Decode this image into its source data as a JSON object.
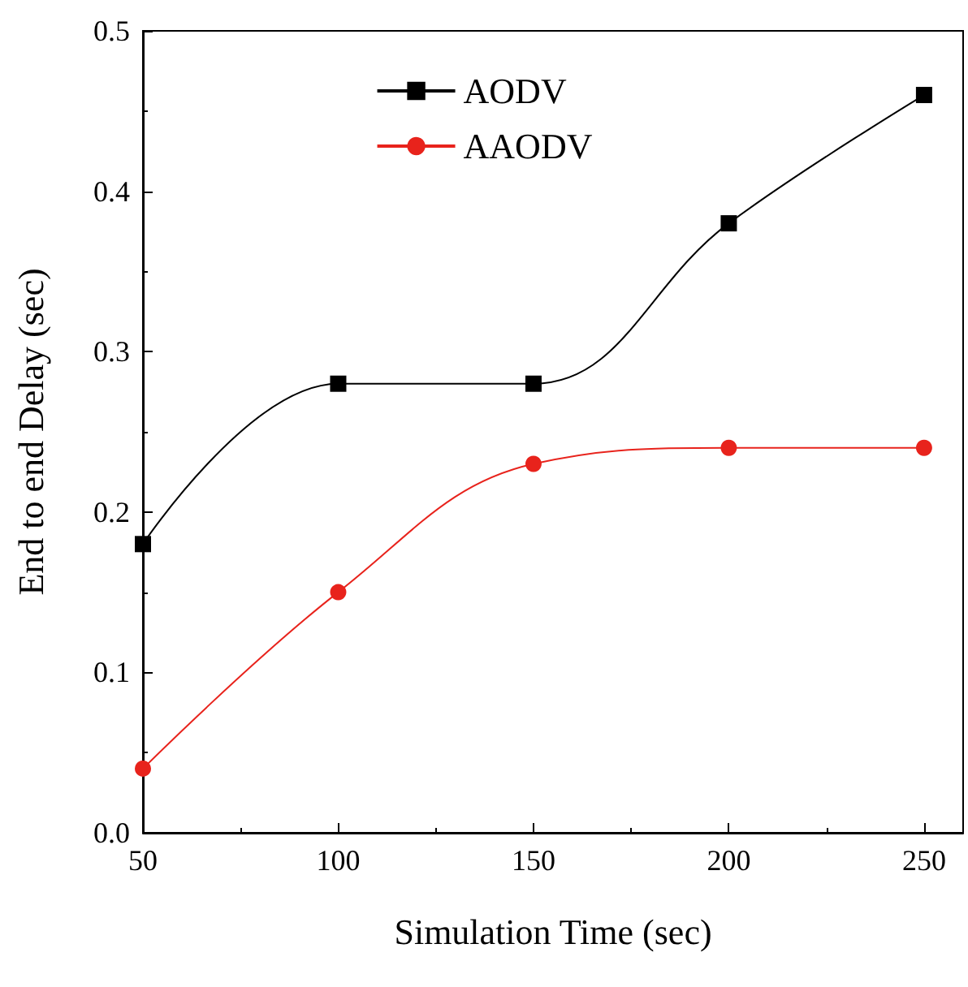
{
  "chart_data": {
    "type": "line",
    "xlabel": "Simulation Time (sec)",
    "ylabel": "End to end Delay (sec)",
    "x": [
      50,
      100,
      150,
      200,
      250
    ],
    "series": [
      {
        "name": "AODV",
        "color": "#000000",
        "marker": "square",
        "values": [
          0.18,
          0.28,
          0.28,
          0.38,
          0.46
        ]
      },
      {
        "name": "AAODV",
        "color": "#e8231c",
        "marker": "circle",
        "values": [
          0.04,
          0.15,
          0.23,
          0.24,
          0.24
        ]
      }
    ],
    "xlim": [
      50,
      260
    ],
    "xticks": [
      50,
      100,
      150,
      200,
      250
    ],
    "ylim": [
      0,
      0.5
    ],
    "yticks": [
      {
        "value": 0,
        "label": "0.0"
      },
      0.1,
      0.2,
      0.3,
      0.4,
      0.5
    ],
    "grid": false,
    "legend": "top",
    "line_style": "solid"
  }
}
